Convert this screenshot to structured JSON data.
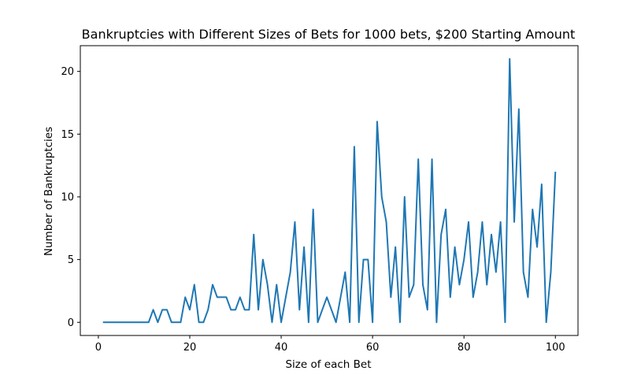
{
  "chart_data": {
    "type": "line",
    "title": "Bankruptcies with Different Sizes of Bets for 1000 bets, $200 Starting Amount",
    "xlabel": "Size of each Bet",
    "ylabel": "Number of Bankruptcies",
    "xlim": [
      -3.95,
      104.95
    ],
    "ylim": [
      -1.05,
      22.05
    ],
    "xticks": [
      0,
      20,
      40,
      60,
      80,
      100
    ],
    "yticks": [
      0,
      5,
      10,
      15,
      20
    ],
    "grid": false,
    "line_color": "#1f77b4",
    "series": [
      {
        "x": [
          1,
          2,
          3,
          4,
          5,
          6,
          7,
          8,
          9,
          10,
          11,
          12,
          13,
          14,
          15,
          16,
          17,
          18,
          19,
          20,
          21,
          22,
          23,
          24,
          25,
          26,
          27,
          28,
          29,
          30,
          31,
          32,
          33,
          34,
          35,
          36,
          37,
          38,
          39,
          40,
          41,
          42,
          43,
          44,
          45,
          46,
          47,
          48,
          49,
          50,
          51,
          52,
          53,
          54,
          55,
          56,
          57,
          58,
          59,
          60,
          61,
          62,
          63,
          64,
          65,
          66,
          67,
          68,
          69,
          70,
          71,
          72,
          73,
          74,
          75,
          76,
          77,
          78,
          79,
          80,
          81,
          82,
          83,
          84,
          85,
          86,
          87,
          88,
          89,
          90,
          91,
          92,
          93,
          94,
          95,
          96,
          97,
          98,
          99,
          100
        ],
        "y": [
          0,
          0,
          0,
          0,
          0,
          0,
          0,
          0,
          0,
          0,
          0,
          1,
          0,
          1,
          1,
          0,
          0,
          0,
          2,
          1,
          3,
          0,
          0,
          1,
          3,
          2,
          2,
          2,
          1,
          1,
          2,
          1,
          1,
          7,
          1,
          5,
          3,
          0,
          3,
          0,
          2,
          4,
          8,
          1,
          6,
          0,
          9,
          0,
          1,
          2,
          1,
          0,
          2,
          4,
          0,
          14,
          0,
          5,
          5,
          0,
          16,
          10,
          8,
          2,
          6,
          0,
          10,
          2,
          3,
          13,
          3,
          1,
          13,
          0,
          7,
          9,
          2,
          6,
          3,
          5,
          8,
          2,
          4,
          8,
          3,
          7,
          4,
          8,
          0,
          21,
          8,
          17,
          4,
          2,
          9,
          6,
          11,
          0,
          4,
          12
        ]
      }
    ]
  }
}
